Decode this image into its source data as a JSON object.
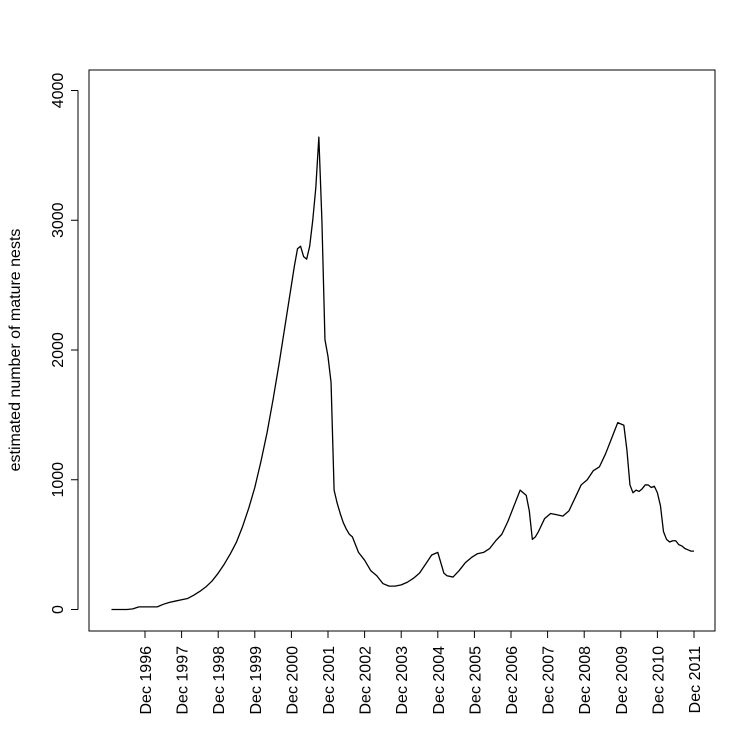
{
  "chart_data": {
    "type": "line",
    "title": "",
    "xlabel": "",
    "ylabel": "estimated number of mature nests",
    "ylim": [
      0,
      4000
    ],
    "y_ticks": [
      0,
      1000,
      2000,
      3000,
      4000
    ],
    "x_ticks": [
      "Dec 1996",
      "Dec 1997",
      "Dec 1998",
      "Dec 1999",
      "Dec 2000",
      "Dec 2001",
      "Dec 2002",
      "Dec 2003",
      "Dec 2004",
      "Dec 2005",
      "Dec 2006",
      "Dec 2007",
      "Dec 2008",
      "Dec 2009",
      "Dec 2010",
      "Dec 2011"
    ],
    "grid": false,
    "series": [
      {
        "color": "#000000",
        "x": [
          "1996-01",
          "1996-04",
          "1996-06",
          "1996-08",
          "1996-10",
          "1996-12",
          "1997-02",
          "1997-04",
          "1997-06",
          "1997-08",
          "1997-10",
          "1997-12",
          "1998-02",
          "1998-04",
          "1998-06",
          "1998-08",
          "1998-10",
          "1998-12",
          "1999-02",
          "1999-04",
          "1999-06",
          "1999-08",
          "1999-10",
          "1999-12",
          "2000-02",
          "2000-04",
          "2000-06",
          "2000-08",
          "2000-10",
          "2000-12",
          "2001-01",
          "2001-02",
          "2001-03",
          "2001-04",
          "2001-05",
          "2001-06",
          "2001-07",
          "2001-08",
          "2001-09",
          "2001-10",
          "2001-11",
          "2001-12",
          "2002-01",
          "2002-02",
          "2002-03",
          "2002-04",
          "2002-05",
          "2002-06",
          "2002-07",
          "2002-08",
          "2002-10",
          "2002-12",
          "2003-02",
          "2003-04",
          "2003-06",
          "2003-08",
          "2003-10",
          "2003-12",
          "2004-02",
          "2004-04",
          "2004-06",
          "2004-08",
          "2004-10",
          "2004-12",
          "2005-02",
          "2005-03",
          "2005-05",
          "2005-07",
          "2005-09",
          "2005-11",
          "2006-01",
          "2006-03",
          "2006-05",
          "2006-07",
          "2006-09",
          "2006-11",
          "2007-01",
          "2007-03",
          "2007-05",
          "2007-06",
          "2007-07",
          "2007-08",
          "2007-09",
          "2007-11",
          "2008-01",
          "2008-03",
          "2008-05",
          "2008-07",
          "2008-09",
          "2008-11",
          "2009-01",
          "2009-03",
          "2009-05",
          "2009-07",
          "2009-09",
          "2009-11",
          "2010-01",
          "2010-02",
          "2010-03",
          "2010-04",
          "2010-05",
          "2010-06",
          "2010-07",
          "2010-08",
          "2010-09",
          "2010-10",
          "2010-11",
          "2010-12",
          "2011-01",
          "2011-02",
          "2011-03",
          "2011-04",
          "2011-05",
          "2011-06",
          "2011-07",
          "2011-08",
          "2011-09",
          "2011-10",
          "2011-11",
          "2011-12"
        ],
        "values": [
          0,
          0,
          0,
          5,
          20,
          20,
          20,
          20,
          40,
          55,
          65,
          75,
          85,
          110,
          140,
          175,
          220,
          280,
          350,
          430,
          520,
          640,
          780,
          940,
          1140,
          1360,
          1620,
          1900,
          2200,
          2500,
          2650,
          2780,
          2800,
          2720,
          2700,
          2800,
          3000,
          3250,
          3640,
          3000,
          2080,
          1950,
          1750,
          920,
          820,
          740,
          670,
          620,
          580,
          560,
          440,
          380,
          300,
          260,
          200,
          180,
          180,
          190,
          210,
          240,
          280,
          350,
          420,
          440,
          280,
          260,
          250,
          300,
          360,
          400,
          430,
          440,
          470,
          530,
          580,
          680,
          800,
          920,
          880,
          760,
          540,
          560,
          600,
          700,
          740,
          730,
          720,
          760,
          860,
          960,
          1000,
          1070,
          1100,
          1200,
          1320,
          1440,
          1420,
          1230,
          960,
          900,
          920,
          910,
          930,
          960,
          960,
          940,
          950,
          900,
          800,
          600,
          540,
          520,
          530,
          530,
          500,
          490,
          470,
          460,
          450,
          450
        ]
      }
    ]
  }
}
